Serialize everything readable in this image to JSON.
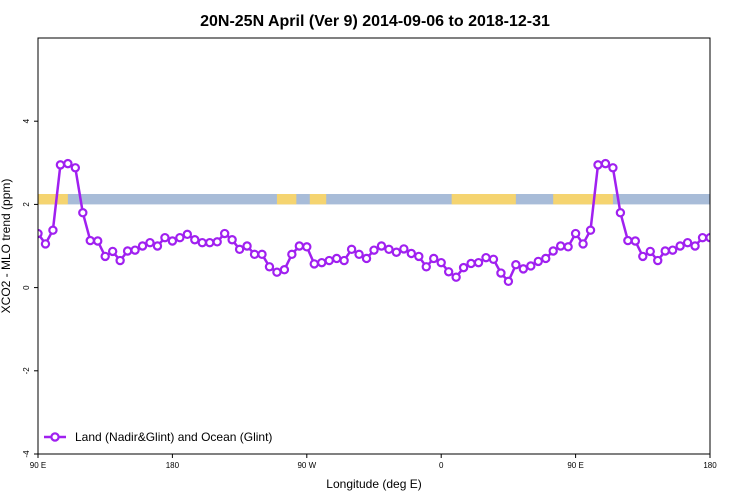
{
  "chart_data": {
    "type": "line",
    "title": "20N-25N April (Ver 9)   2014-09-06 to 2018-12-31",
    "xlabel": "Longitude (deg E)",
    "ylabel": "XCO2 - MLO trend (ppm)",
    "xlim": [
      90,
      540
    ],
    "ylim": [
      -4,
      6
    ],
    "x_ticks": [
      {
        "value": 90,
        "label": "90 E"
      },
      {
        "value": 180,
        "label": "180"
      },
      {
        "value": 270,
        "label": "90 W"
      },
      {
        "value": 360,
        "label": "0"
      },
      {
        "value": 450,
        "label": "90 E"
      },
      {
        "value": 540,
        "label": "180"
      }
    ],
    "y_ticks": [
      {
        "value": -4,
        "label": "-4"
      },
      {
        "value": -2,
        "label": "-2"
      },
      {
        "value": 0,
        "label": "0"
      },
      {
        "value": 2,
        "label": "2"
      },
      {
        "value": 4,
        "label": "4"
      }
    ],
    "legend": {
      "position": "bottom-left",
      "label": "Land (Nadir&Glint) and Ocean (Glint)"
    },
    "colors": {
      "line": "#a020f0",
      "ocean": "#a8bcd8",
      "land": "#f5d470"
    },
    "band": {
      "ymin": 2.0,
      "ymax": 2.25
    },
    "land_ranges": [
      [
        90,
        110
      ],
      [
        250,
        263
      ],
      [
        272,
        283
      ],
      [
        367,
        410
      ],
      [
        435,
        466
      ],
      [
        466,
        475
      ]
    ],
    "series": [
      {
        "x": [
          90,
          95,
          100,
          105,
          110,
          115,
          120,
          125,
          130,
          135,
          140,
          145,
          150,
          155,
          160,
          165,
          170,
          175,
          180,
          185,
          190,
          195,
          200,
          205,
          210,
          215,
          220,
          225,
          230,
          235,
          240,
          245,
          250,
          255,
          260,
          265,
          270,
          275,
          280,
          285,
          290,
          295,
          300,
          305,
          310,
          315,
          320,
          325,
          330,
          335,
          340,
          345,
          350,
          355,
          360,
          365,
          370,
          375,
          380,
          385,
          390,
          395,
          400,
          405,
          410,
          415,
          420,
          425,
          430,
          435,
          440,
          445,
          450,
          455,
          460,
          465,
          470,
          475,
          480,
          485,
          490,
          495,
          500,
          505,
          510,
          515,
          520,
          525,
          530,
          535,
          540
        ],
        "y": [
          1.3,
          1.05,
          1.38,
          2.95,
          2.98,
          2.88,
          1.8,
          1.13,
          1.12,
          0.75,
          0.87,
          0.65,
          0.88,
          0.9,
          1.0,
          1.08,
          1.0,
          1.2,
          1.12,
          1.2,
          1.28,
          1.15,
          1.08,
          1.08,
          1.1,
          1.3,
          1.15,
          0.92,
          1.0,
          0.8,
          0.8,
          0.5,
          0.37,
          0.43,
          0.8,
          1.0,
          0.98,
          0.57,
          0.6,
          0.65,
          0.7,
          0.65,
          0.92,
          0.8,
          0.7,
          0.9,
          1.0,
          0.92,
          0.85,
          0.93,
          0.82,
          0.75,
          0.5,
          0.7,
          0.6,
          0.38,
          0.25,
          0.48,
          0.58,
          0.6,
          0.72,
          0.68,
          0.35,
          0.15,
          0.55,
          0.45,
          0.52,
          0.63,
          0.7,
          0.88,
          1.0,
          0.98,
          1.3,
          1.05,
          1.38,
          2.95,
          2.98,
          2.88,
          1.8,
          1.13,
          1.12,
          0.75,
          0.87,
          0.65,
          0.88,
          0.9,
          1.0,
          1.08,
          1.0,
          1.2,
          1.2
        ]
      }
    ]
  }
}
